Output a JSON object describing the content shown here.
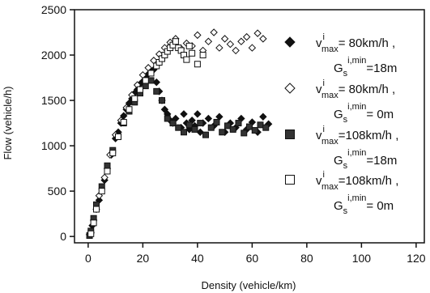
{
  "chart_data": {
    "type": "scatter",
    "xlabel": "Density (vehicle/km)",
    "ylabel": "Flow (vehicle/h)",
    "xlim": [
      -5,
      123
    ],
    "ylim": [
      -70,
      2500
    ],
    "xticks": [
      0,
      20,
      40,
      60,
      80,
      100,
      120
    ],
    "yticks": [
      0,
      500,
      1000,
      1500,
      2000,
      2500
    ],
    "xtick_labels": [
      "0",
      "20",
      "40",
      "60",
      "80",
      "100",
      "120"
    ],
    "ytick_labels": [
      "0",
      "500",
      "1000",
      "1500",
      "2000",
      "2500"
    ],
    "grid": false,
    "legend_position": "right",
    "series": [
      {
        "marker": "filled-diamond",
        "legend": {
          "line1_main": "v",
          "line1_sup": "i",
          "line1_sub": "max",
          "line1_rest": "= 80km/h ,",
          "line2_main": "G",
          "line2_sub": "s",
          "line2_sup": "i,min",
          "line2_rest": "=18m"
        },
        "x": [
          0.5,
          1.5,
          3,
          4,
          6,
          7,
          8.5,
          10,
          11,
          12,
          13,
          14,
          15,
          16,
          17,
          18,
          19,
          20,
          21,
          22,
          23,
          24,
          25,
          26,
          27,
          28,
          29,
          30,
          31,
          32,
          34,
          35,
          36,
          37,
          38,
          39,
          40,
          41,
          42,
          44,
          46,
          48,
          50,
          52,
          54,
          56,
          58,
          60,
          62,
          64,
          66
        ],
        "y": [
          20,
          120,
          300,
          400,
          620,
          750,
          900,
          1080,
          1150,
          1250,
          1330,
          1400,
          1470,
          1520,
          1580,
          1620,
          1680,
          1710,
          1760,
          1790,
          1810,
          1840,
          1700,
          1600,
          1500,
          1400,
          1350,
          1280,
          1250,
          1300,
          1200,
          1350,
          1250,
          1180,
          1280,
          1220,
          1350,
          1150,
          1250,
          1300,
          1220,
          1320,
          1150,
          1250,
          1200,
          1300,
          1180,
          1260,
          1150,
          1320,
          1240
        ]
      },
      {
        "marker": "open-diamond",
        "legend": {
          "line1_main": "v",
          "line1_sup": "i",
          "line1_sub": "max",
          "line1_rest": "= 80km/h ,",
          "line2_main": "G",
          "line2_sub": "s",
          "line2_sup": "i,min",
          "line2_rest": "= 0m"
        },
        "x": [
          1,
          2,
          4,
          6,
          8,
          10,
          12,
          14,
          16,
          18,
          20,
          22,
          24,
          26,
          28,
          30,
          32,
          34,
          36,
          38,
          40,
          42,
          44,
          46,
          48,
          50,
          52,
          54,
          56,
          58,
          60,
          62,
          64
        ],
        "y": [
          40,
          180,
          450,
          650,
          900,
          1120,
          1280,
          1420,
          1560,
          1670,
          1780,
          1860,
          1940,
          2010,
          2080,
          2140,
          2180,
          2070,
          2130,
          2100,
          2220,
          2050,
          2150,
          2250,
          2080,
          2180,
          2120,
          2050,
          2150,
          2200,
          2080,
          2240,
          2180
        ]
      },
      {
        "marker": "filled-square",
        "legend": {
          "line1_main": "v",
          "line1_sup": "i",
          "line1_sub": "max",
          "line1_rest": "=108km/h ,",
          "line2_main": "G",
          "line2_sub": "s",
          "line2_sup": "i,min",
          "line2_rest": "=18m"
        },
        "x": [
          0.5,
          1,
          2,
          3,
          5,
          7,
          9,
          11,
          13,
          15,
          17,
          19,
          21,
          23,
          25,
          27,
          29,
          31,
          33,
          35,
          37,
          39,
          41,
          43,
          45,
          47,
          49,
          51,
          53,
          55,
          57,
          59,
          61,
          63,
          65
        ],
        "y": [
          10,
          60,
          200,
          350,
          550,
          780,
          950,
          1100,
          1250,
          1380,
          1480,
          1580,
          1660,
          1720,
          1600,
          1500,
          1300,
          1250,
          1200,
          1150,
          1230,
          1180,
          1250,
          1120,
          1200,
          1260,
          1150,
          1220,
          1180,
          1250,
          1140,
          1210,
          1170,
          1230,
          1200
        ]
      },
      {
        "marker": "open-square",
        "legend": {
          "line1_main": "v",
          "line1_sup": "i",
          "line1_sub": "max",
          "line1_rest": "=108km/h ,",
          "line2_main": "G",
          "line2_sub": "s",
          "line2_sup": "i,min",
          "line2_rest": "= 0m"
        },
        "x": [
          1,
          2,
          3,
          5,
          7,
          9,
          11,
          13,
          15,
          17,
          19,
          21,
          23,
          25,
          26,
          27,
          28,
          29,
          30,
          31,
          32,
          33,
          34,
          35,
          36,
          37,
          38,
          40,
          42
        ],
        "y": [
          30,
          150,
          300,
          500,
          720,
          920,
          1100,
          1260,
          1400,
          1520,
          1620,
          1720,
          1800,
          1880,
          1920,
          1960,
          2000,
          2040,
          2080,
          2110,
          2150,
          2080,
          2050,
          2000,
          1950,
          2100,
          2020,
          1900,
          2000
        ]
      }
    ]
  }
}
